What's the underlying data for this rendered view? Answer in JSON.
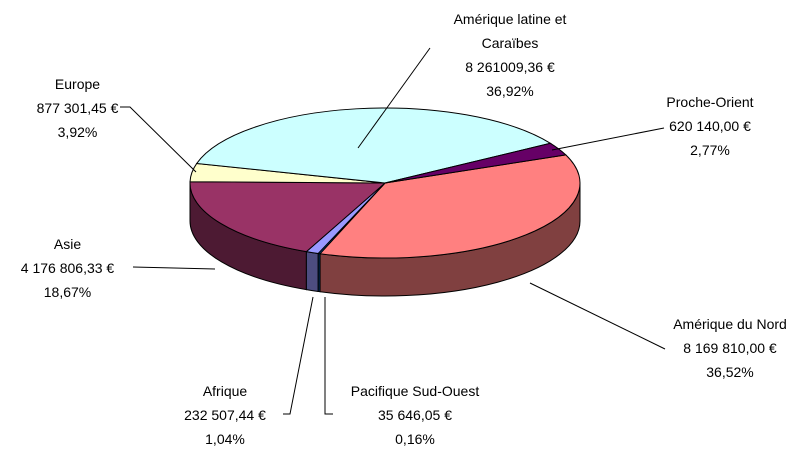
{
  "chart_data": {
    "type": "pie3d",
    "categories": [
      "Amérique du Nord",
      "Pacifique Sud-Ouest",
      "Afrique",
      "Asie",
      "Europe",
      "Amérique latine et Caraïbes",
      "Proche-Orient"
    ],
    "values": [
      8169810.0,
      35646.05,
      232507.44,
      4176806.33,
      877301.45,
      8261009.36,
      620140.0
    ],
    "value_labels": [
      "8 169 810,00 €",
      "35 646,05 €",
      "232 507,44 €",
      "4 176 806,33 €",
      "877 301,45 €",
      "8 261009,36 €",
      "620 140,00 €"
    ],
    "percentages": [
      36.52,
      0.16,
      1.04,
      18.67,
      3.92,
      36.92,
      2.77
    ],
    "percentage_labels": [
      "36,52%",
      "0,16%",
      "1,04%",
      "18,67%",
      "3,92%",
      "36,92%",
      "2,77%"
    ],
    "colors": [
      "#ff8080",
      "#0066cc",
      "#9999ff",
      "#993366",
      "#ffffcc",
      "#ccffff",
      "#660066"
    ]
  }
}
